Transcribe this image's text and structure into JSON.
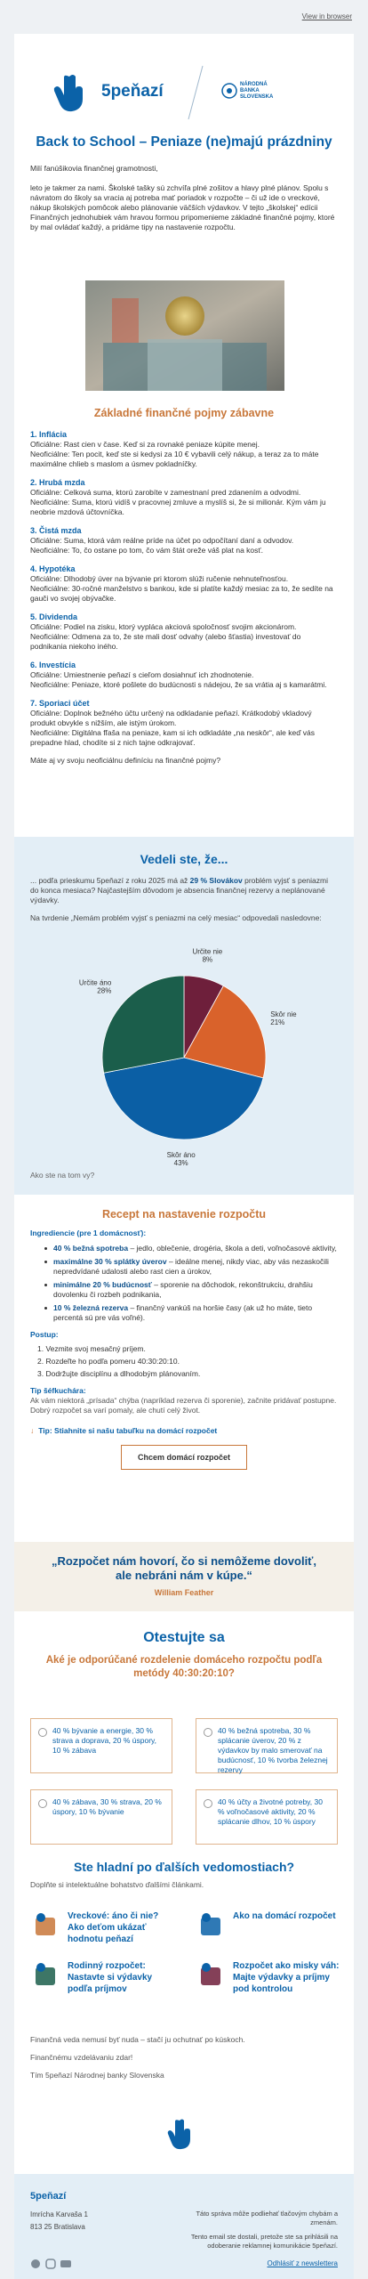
{
  "header": {
    "view_in_browser": "View in browser",
    "brand": "5peňazí",
    "nbs": [
      "NÁRODNÁ",
      "BANKA",
      "SLOVENSKA"
    ]
  },
  "intro": {
    "title": "Back to School – Peniaze (ne)majú prázdniny",
    "greeting": "Milí fanúšikovia finančnej gramotnosti,",
    "body": "leto je takmer za nami. Školské tašky sú zchvíľa plné zošitov a hlavy plné plánov. Spolu s návratom do školy sa vracia aj potreba mať poriadok v rozpočte – či už ide o vreckové, nákup školských pomôcok alebo plánovanie väčších výdavkov. V tejto „školskej“ edícii Finančných jednohubiek vám hravou formou pripomenieme základné finančné pojmy, ktoré by mal ovládať každý, a pridáme tipy na nastavenie rozpočtu."
  },
  "terms": {
    "heading": "Základné finančné pojmy zábavne",
    "items": [
      {
        "title": "1. Inflácia",
        "official": "Oficiálne: Rast cien v čase. Keď si za rovnaké peniaze kúpite menej.",
        "unofficial": "Neoficiálne: Ten pocit, keď ste si kedysi za 10 € vybavili celý nákup, a teraz za to máte maximálne chlieb s maslom a úsmev pokladníčky."
      },
      {
        "title": "2. Hrubá mzda",
        "official": "Oficiálne: Celková suma, ktorú zarobíte v zamestnaní pred zdanením a odvodmi.",
        "unofficial": "Neoficiálne: Suma, ktorú vidíš v pracovnej zmluve a myslíš si, že si milionár. Kým vám ju neobrie mzdová účtovníčka."
      },
      {
        "title": "3. Čistá mzda",
        "official": "Oficiálne: Suma, ktorá vám reálne príde na účet po odpočítaní daní a odvodov.",
        "unofficial": "Neoficiálne: To, čo ostane po tom, čo vám štát oreže váš plat na kosť."
      },
      {
        "title": "4. Hypotéka",
        "official": "Oficiálne: Dlhodobý úver na bývanie pri ktorom slúži ručenie nehnuteľnosťou.",
        "unofficial": "Neoficiálne: 30-ročné manželstvo s bankou, kde si platíte každý mesiac za to, že sedíte na gauči vo svojej obývačke."
      },
      {
        "title": "5. Dividenda",
        "official": "Oficiálne: Podiel na zisku, ktorý vypláca akciová spoločnosť svojim akcionárom.",
        "unofficial": "Neoficiálne: Odmena za to, že ste mali dosť odvahy (alebo šťastia) investovať do podnikania niekoho iného."
      },
      {
        "title": "6. Investícia",
        "official": "Oficiálne: Umiestnenie peňazí s cieľom dosiahnuť ich zhodnotenie.",
        "unofficial": "Neoficiálne: Peniaze, ktoré pošlete do budúcnosti s nádejou, že sa vrátia aj s kamarátmi."
      },
      {
        "title": "7. Sporiaci účet",
        "official": "Oficiálne: Doplnok bežného účtu určený na odkladanie peňazí. Krátkodobý vkladový produkt obvykle s nižším, ale istým úrokom.",
        "unofficial": "Neoficiálne: Digitálna fľaša na peniaze, kam si ich odkladáte „na neskôr“, ale keď vás prepadne hlad, chodíte si z nich tajne odkrajovať."
      }
    ],
    "question": "Máte aj vy svoju neoficiálnu definíciu na finančné pojmy?"
  },
  "did_you_know": {
    "heading": "Vedeli ste, že...",
    "text_before": "... podľa prieskumu 5peňazí z roku 2025 má až ",
    "text_bold": "29 % Slovákov",
    "text_after": " problém vyjsť s peniazmi do konca mesiaca? Najčastejším dôvodom je absencia finančnej rezervy a neplánované výdavky.",
    "survey_intro": "Na tvrdenie „Nemám problém vyjsť s peniazmi na celý mesiac“ odpovedali nasledovne:",
    "outro": "Ako ste na tom vy?"
  },
  "chart_data": {
    "type": "pie",
    "categories": [
      "Určite nie",
      "Skôr nie",
      "Skôr áno",
      "Určite áno"
    ],
    "values": [
      8,
      21,
      43,
      28
    ],
    "value_labels": [
      "8%",
      "21%",
      "43%",
      "28%"
    ],
    "colors": [
      "#6e1f3b",
      "#d9622b",
      "#0b5fa5",
      "#1b5e4b"
    ]
  },
  "recipe": {
    "heading": "Recept na nastavenie rozpočtu",
    "ingredients_title": "Ingrediencie (pre 1 domácnosť):",
    "ingredients": [
      {
        "bold": "40 % bežná spotreba",
        "text": " – jedlo, oblečenie, drogéria, škola a deti, voľnočasové aktivity,"
      },
      {
        "bold": "maximálne 30 % splátky úverov",
        "text": " – ideálne menej, nikdy viac, aby vás nezaskočili nepredvídané udalosti alebo rast cien a úrokov,"
      },
      {
        "bold": "minimálne 20 % budúcnosť",
        "text": " – sporenie na dôchodok, rekonštrukciu, drahšiu dovolenku či rozbeh podnikania,"
      },
      {
        "bold": "10 % železná rezerva",
        "text": " – finančný vankúš na horšie časy (ak už ho máte, tieto percentá sú pre vás voľné)."
      }
    ],
    "steps_title": "Postup:",
    "steps": [
      "1. Vezmite svoj mesačný príjem.",
      "2. Rozdeľte ho podľa pomeru 40:30:20:10.",
      "3. Dodržujte disciplínu a dlhodobým plánovaním."
    ],
    "tip_title": "Tip šéfkuchára:",
    "tip_text": "Ak vám niektorá „prísada“ chýba (napríklad rezerva či sporenie), začnite pridávať postupne. Dobrý rozpočet sa varí pomaly, ale chutí celý život.",
    "download_tip": "Tip: Stiahnite si našu tabuľku na domácí rozpočet",
    "button": "Chcem domácí rozpočet"
  },
  "quote": {
    "text": "„Rozpočet nám hovorí, čo si nemôžeme dovoliť, ale nebráni nám v kúpe.“",
    "author": "William Feather"
  },
  "quiz": {
    "heading": "Otestujte sa",
    "question": "Aké je odporúčané rozdelenie domáceho rozpočtu podľa metódy 40:30:20:10?",
    "options": [
      "40 % bývanie a energie, 30 % strava a doprava, 20 % úspory, 10 % zábava",
      "40 % bežná spotreba, 30 % splácanie úverov, 20 % z výdavkov by malo smerovať na budúcnosť, 10 % tvorba železnej rezervy",
      "40 % zábava, 30 % strava, 20 % úspory, 10 % bývanie",
      "40 % účty a životné potreby, 30 % voľnočasové aktivity, 20 % splácanie dlhov, 10 % úspory"
    ]
  },
  "articles": {
    "heading": "Ste hladní po ďalších vedomostiach?",
    "subheading": "Doplňte si intelektuálne bohatstvo ďalšími článkami.",
    "items": [
      "Vreckové: áno či nie? Ako deťom ukázať hodnotu peňazí",
      "Ako na domácí rozpočet",
      "Rodinný rozpočet: Nastavte si výdavky podľa príjmov",
      "Rozpočet ako misky váh: Majte výdavky a príjmy pod kontrolou"
    ]
  },
  "closing": {
    "lines": [
      "Finančná veda nemusí byť nuda – stačí ju ochutnať po kúskoch.",
      "Finančnému vzdelávaniu zdar!",
      "Tím 5peňazí Národnej banky Slovenska"
    ]
  },
  "footer": {
    "brand": "5peňazí",
    "address": [
      "Imrícha Karvaša 1",
      "813 25 Bratislava"
    ],
    "disclaimer": [
      "Táto správa môže podliehať tlačovým chybám a zmenám.",
      "Tento email ste dostali, pretože ste sa prihlásili na odoberanie reklamnej komunikácie 5peňazí."
    ],
    "unsubscribe": "Odhlásiť z newslettera"
  }
}
